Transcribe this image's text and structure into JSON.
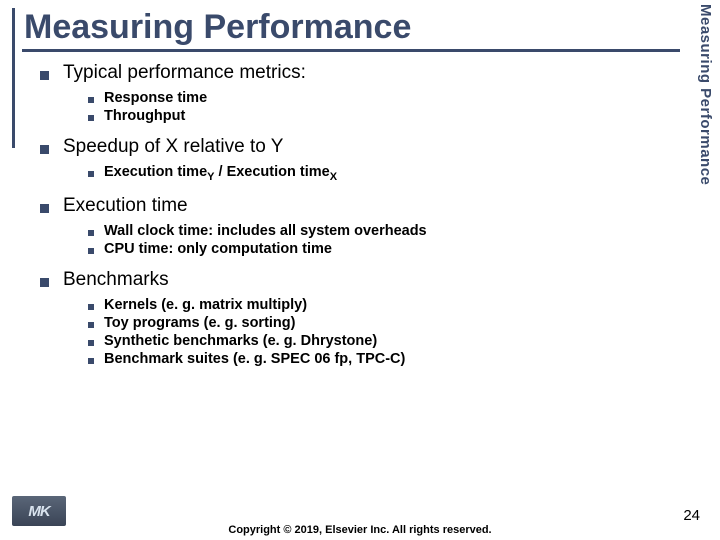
{
  "colors": {
    "accent": "#3a4a6b",
    "text": "#000000",
    "background": "#ffffff"
  },
  "typography": {
    "title_fontsize": 34,
    "h1_fontsize": 19,
    "sub_fontsize": 14.5,
    "footer_fontsize": 11,
    "pagenum_fontsize": 15,
    "tab_fontsize": 15
  },
  "title": "Measuring Performance",
  "tab": "Measuring Performance",
  "sections": [
    {
      "heading": "Typical performance metrics:",
      "items": [
        "Response time",
        "Throughput"
      ]
    },
    {
      "heading": "Speedup of X relative to Y",
      "items_html": [
        "Execution time<sub>Y</sub> / Execution time<sub>X</sub>"
      ]
    },
    {
      "heading": "Execution time",
      "items": [
        "Wall clock time:  includes all system overheads",
        "CPU time:  only computation time"
      ]
    },
    {
      "heading": "Benchmarks",
      "items": [
        "Kernels (e. g. matrix multiply)",
        "Toy programs (e. g. sorting)",
        "Synthetic benchmarks (e. g. Dhrystone)",
        "Benchmark suites (e. g. SPEC 06 fp, TPC-C)"
      ]
    }
  ],
  "footer": {
    "logo": "MK",
    "copyright": "Copyright © 2019, Elsevier Inc. All rights reserved.",
    "page": "24"
  }
}
